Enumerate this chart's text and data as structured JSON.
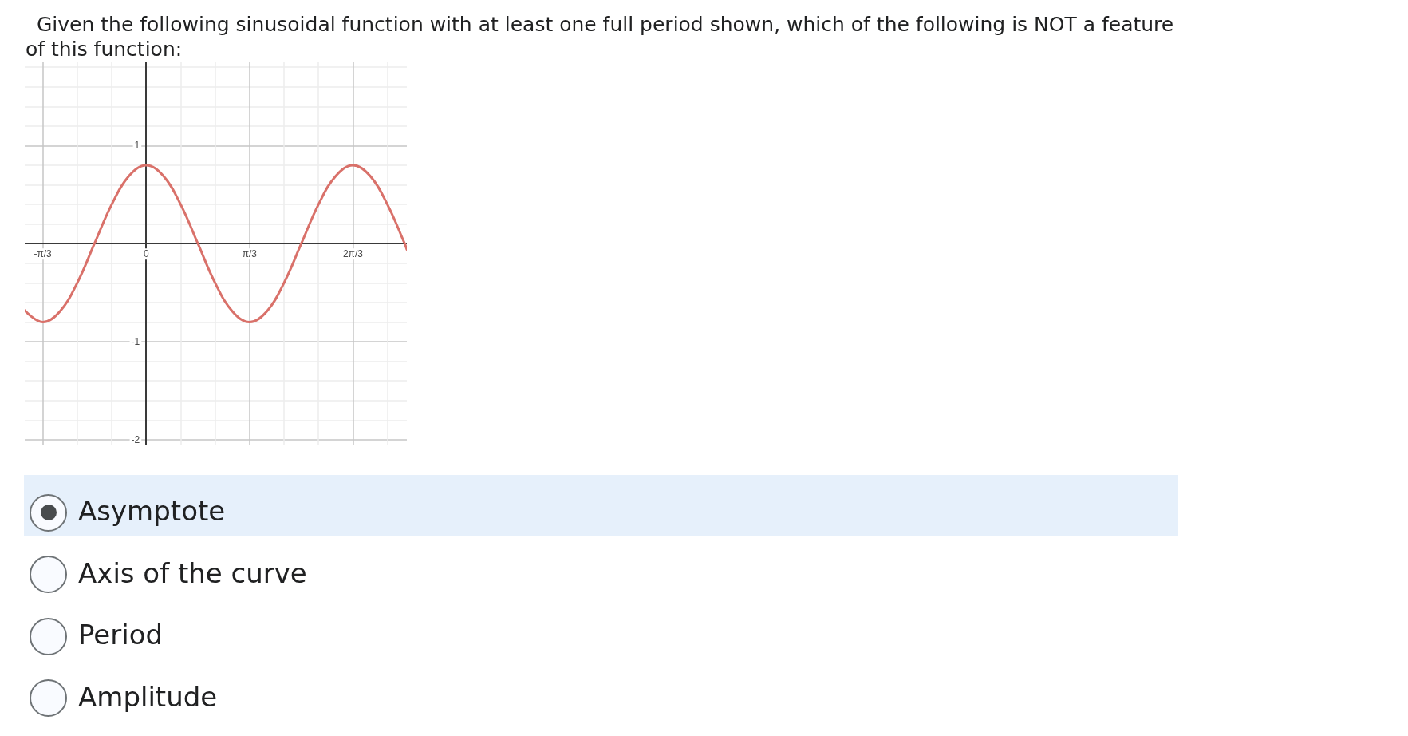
{
  "chart_data": {
    "type": "line",
    "title": "Given the following sinusoidal function with at least one full period shown, which of the following is NOT a feature of this function:",
    "annotations": [
      "Asymptote",
      "Axis of the curve",
      "Period",
      "Amplitude"
    ],
    "x": [
      -1.23,
      -1.047,
      -0.873,
      -0.698,
      -0.524,
      -0.349,
      -0.175,
      0,
      0.175,
      0.349,
      0.524,
      0.698,
      0.873,
      1.047,
      1.222,
      1.396,
      1.571,
      1.745,
      1.92,
      2.094,
      2.269,
      2.443,
      2.618,
      2.64
    ],
    "series": [
      {
        "color": "#d9716a",
        "values": [
          -0.68,
          -0.8,
          -0.69,
          -0.4,
          0,
          0.4,
          0.69,
          0.8,
          0.69,
          0.4,
          0,
          -0.4,
          -0.69,
          -0.8,
          -0.69,
          -0.4,
          0,
          0.4,
          0.69,
          0.8,
          0.69,
          0.4,
          0,
          -0.06
        ]
      }
    ],
    "xlim": [
      -1.23,
      2.64
    ],
    "ylim": [
      -2.05,
      1.85
    ],
    "xticks": [
      {
        "value": -1.047,
        "label": "-π/3"
      },
      {
        "value": -0.698,
        "label": null
      },
      {
        "value": -0.349,
        "label": null
      },
      0,
      {
        "value": 0.349,
        "label": null
      },
      {
        "value": 0.698,
        "label": null
      },
      {
        "value": 1.047,
        "label": "π/3"
      },
      {
        "value": 1.396,
        "label": null
      },
      {
        "value": 1.745,
        "label": null
      },
      {
        "value": 2.094,
        "label": "2π/3"
      },
      {
        "value": 2.443,
        "label": null
      }
    ],
    "yticks": [
      -2,
      {
        "value": -1.8,
        "label": null
      },
      {
        "value": -1.6,
        "label": null
      },
      {
        "value": -1.4,
        "label": null
      },
      {
        "value": -1.2,
        "label": null
      },
      -1,
      {
        "value": -0.8,
        "label": null
      },
      {
        "value": -0.6,
        "label": null
      },
      {
        "value": -0.4,
        "label": null
      },
      {
        "value": -0.2,
        "label": null
      },
      {
        "value": 0,
        "label": null
      },
      {
        "value": 0.2,
        "label": null
      },
      {
        "value": 0.4,
        "label": null
      },
      {
        "value": 0.6,
        "label": null
      },
      {
        "value": 0.8,
        "label": null
      },
      1,
      {
        "value": 1.2,
        "label": null
      },
      {
        "value": 1.4,
        "label": null
      },
      {
        "value": 1.6,
        "label": null
      },
      {
        "value": 1.8,
        "label": null
      }
    ],
    "grid": true
  }
}
